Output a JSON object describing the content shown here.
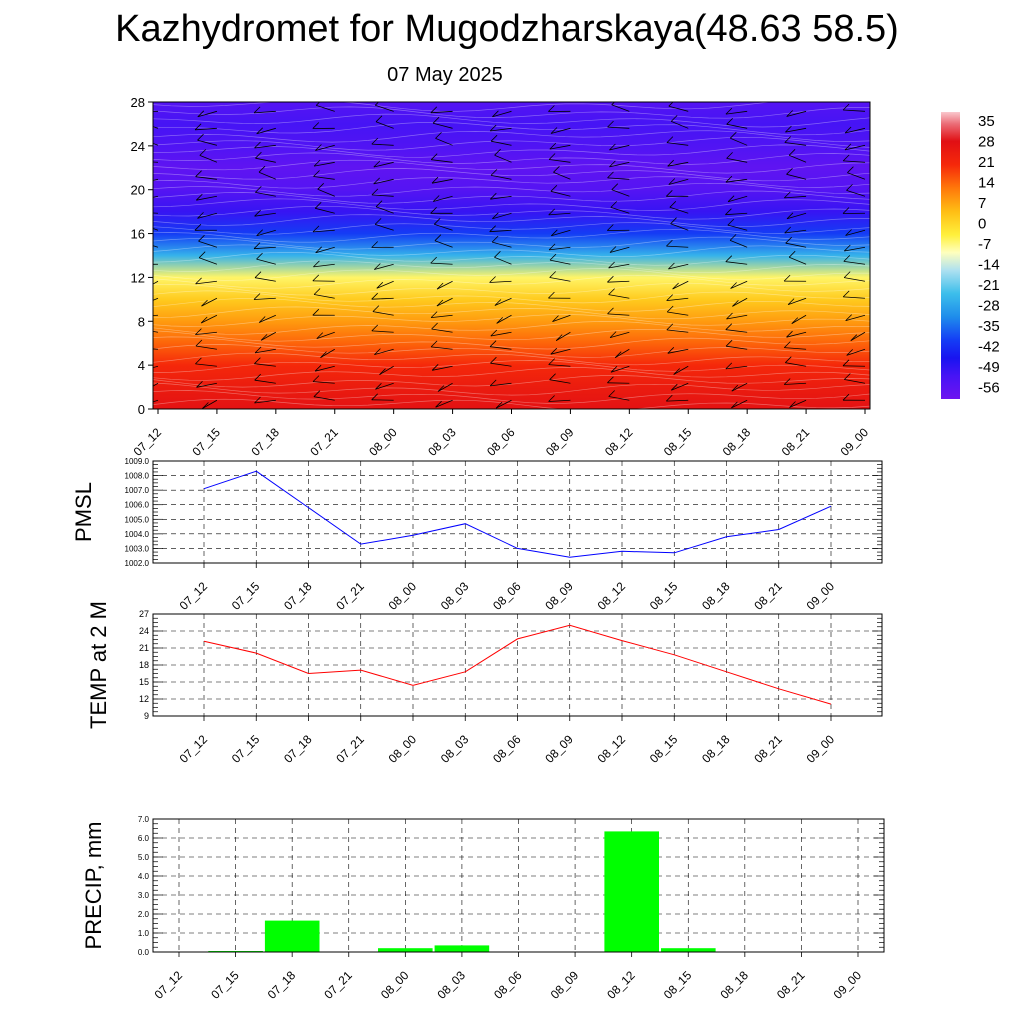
{
  "title": "Kazhydromet for Mugodzharskaya(48.63 58.5)",
  "subtitle": "07 May 2025",
  "colors": {
    "pmsl_line": "#0000ff",
    "temp_line": "#ff0000",
    "precip_bar": "#00ff00",
    "barb": "#000000"
  },
  "chart_data": [
    {
      "id": "cross_section",
      "type": "heatmap",
      "title": "",
      "x_categories": [
        "07_12",
        "07_15",
        "07_18",
        "07_21",
        "08_00",
        "08_03",
        "08_06",
        "08_09",
        "08_12",
        "08_15",
        "08_18",
        "08_21",
        "09_00"
      ],
      "ylim": [
        0,
        28
      ],
      "yticks": [
        "0",
        "4",
        "8",
        "12",
        "16",
        "20",
        "24",
        "28"
      ],
      "colorbar": {
        "labels": [
          "35",
          "28",
          "21",
          "14",
          "7",
          "0",
          "-7",
          "-14",
          "-21",
          "-28",
          "-35",
          "-42",
          "-49",
          "-56"
        ],
        "range": [
          -60,
          38
        ]
      },
      "temperature_profile": {
        "levels": [
          0,
          2,
          4,
          6,
          8,
          10,
          12,
          14,
          16,
          18,
          20,
          22,
          24,
          26,
          28
        ],
        "values": [
          27,
          24,
          20,
          14,
          8,
          2,
          -6,
          -26,
          -40,
          -50,
          -55,
          -57,
          -54,
          -52,
          -55
        ]
      },
      "wind_barbs": "present (wind direction/speed at each level and time)"
    },
    {
      "id": "pmsl",
      "type": "line",
      "ylabel": "PMSL",
      "categories": [
        "07_12",
        "07_15",
        "07_18",
        "07_21",
        "08_00",
        "08_03",
        "08_06",
        "08_09",
        "08_12",
        "08_15",
        "08_18",
        "08_21",
        "09_00"
      ],
      "values": [
        1007.1,
        1008.3,
        1005.8,
        1003.3,
        1003.9,
        1004.7,
        1003.0,
        1002.4,
        1002.8,
        1002.7,
        1003.8,
        1004.3,
        1005.9
      ],
      "ylim": [
        1002.0,
        1009.0
      ],
      "yticks": [
        "1002.0",
        "1003.0",
        "1004.0",
        "1005.0",
        "1006.0",
        "1007.0",
        "1008.0",
        "1009.0"
      ],
      "grid": true
    },
    {
      "id": "temp2m",
      "type": "line",
      "ylabel": "TEMP at 2 M",
      "categories": [
        "07_12",
        "07_15",
        "07_18",
        "07_21",
        "08_00",
        "08_03",
        "08_06",
        "08_09",
        "08_12",
        "08_15",
        "08_18",
        "08_21",
        "09_00"
      ],
      "values": [
        22.2,
        20.1,
        16.5,
        17.1,
        14.4,
        16.8,
        22.6,
        25.0,
        22.3,
        19.8,
        16.8,
        13.8,
        11.1
      ],
      "ylim": [
        9,
        27
      ],
      "yticks": [
        "9",
        "12",
        "15",
        "18",
        "21",
        "24",
        "27"
      ],
      "grid": true
    },
    {
      "id": "precip",
      "type": "bar",
      "ylabel": "PRECIP, mm",
      "categories": [
        "07_12",
        "07_15",
        "07_18",
        "07_21",
        "08_00",
        "08_03",
        "08_06",
        "08_09",
        "08_12",
        "08_15",
        "08_18",
        "08_21",
        "09_00"
      ],
      "values": [
        0.0,
        0.05,
        1.65,
        0.0,
        0.2,
        0.35,
        0.0,
        0.0,
        6.35,
        0.2,
        0.0,
        0.0,
        0.0
      ],
      "ylim": [
        0.0,
        7.0
      ],
      "yticks": [
        "0.0",
        "1.0",
        "2.0",
        "3.0",
        "4.0",
        "5.0",
        "6.0",
        "7.0"
      ],
      "grid": true
    }
  ]
}
